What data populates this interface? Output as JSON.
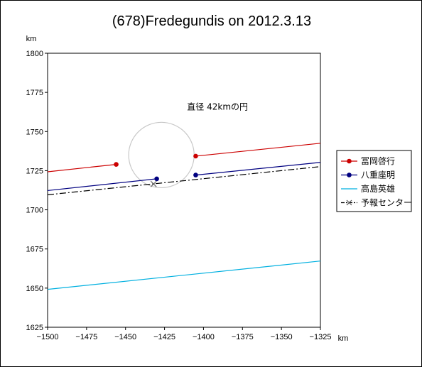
{
  "chart_data": {
    "type": "line",
    "title": "(678)Fredegundis on 2012.3.13",
    "xunit": "km",
    "yunit": "km",
    "xlim": [
      -1500,
      -1325
    ],
    "ylim": [
      1625,
      1800
    ],
    "xticks": [
      -1500,
      -1475,
      -1450,
      -1425,
      -1400,
      -1375,
      -1350,
      -1325
    ],
    "yticks": [
      1625,
      1650,
      1675,
      1700,
      1725,
      1750,
      1775,
      1800
    ],
    "xtick_labels": [
      "−1500",
      "−1475",
      "−1450",
      "−1425",
      "−1400",
      "−1375",
      "−1350",
      "−1325"
    ],
    "yticks_labels": [
      "1625",
      "1650",
      "1675",
      "1700",
      "1725",
      "1750",
      "1775",
      "1800"
    ],
    "grid": false,
    "legend_position": "right",
    "series": [
      {
        "name": "冨岡啓行",
        "color": "#cc0000",
        "style": "solid",
        "marker": "dot",
        "segments": [
          {
            "x": [
              -1500,
              -1456
            ],
            "y": [
              1724.3,
              1729
            ]
          },
          {
            "x": [
              -1405,
              -1325
            ],
            "y": [
              1734.3,
              1742.5
            ]
          }
        ],
        "points": [
          {
            "x": -1456,
            "y": 1729
          },
          {
            "x": -1405,
            "y": 1734.3
          }
        ]
      },
      {
        "name": "八重座明",
        "color": "#000080",
        "style": "solid",
        "marker": "dot",
        "segments": [
          {
            "x": [
              -1500,
              -1430
            ],
            "y": [
              1712.3,
              1719.8
            ]
          },
          {
            "x": [
              -1405,
              -1325
            ],
            "y": [
              1722.2,
              1730.3
            ]
          }
        ],
        "points": [
          {
            "x": -1430,
            "y": 1719.8
          },
          {
            "x": -1405,
            "y": 1722.2
          }
        ]
      },
      {
        "name": "高島英雄",
        "color": "#00b0e0",
        "style": "solid",
        "marker": "none",
        "segments": [
          {
            "x": [
              -1500,
              -1325
            ],
            "y": [
              1649.2,
              1667.3
            ]
          }
        ],
        "points": []
      },
      {
        "name": "予報センター",
        "color": "#000000",
        "style": "dashdot",
        "marker": "x",
        "segments": [
          {
            "x": [
              -1500,
              -1325
            ],
            "y": [
              1709.6,
              1727.6
            ]
          }
        ],
        "points": [
          {
            "x": -1432,
            "y": 1716.5
          }
        ]
      }
    ],
    "circle": {
      "center_x": -1427,
      "center_y": 1735,
      "diameter_km": 42,
      "color": "#c8c8c8"
    },
    "annotation": {
      "text": "直径 42kmの円",
      "x": -1391,
      "y": 1764
    }
  }
}
